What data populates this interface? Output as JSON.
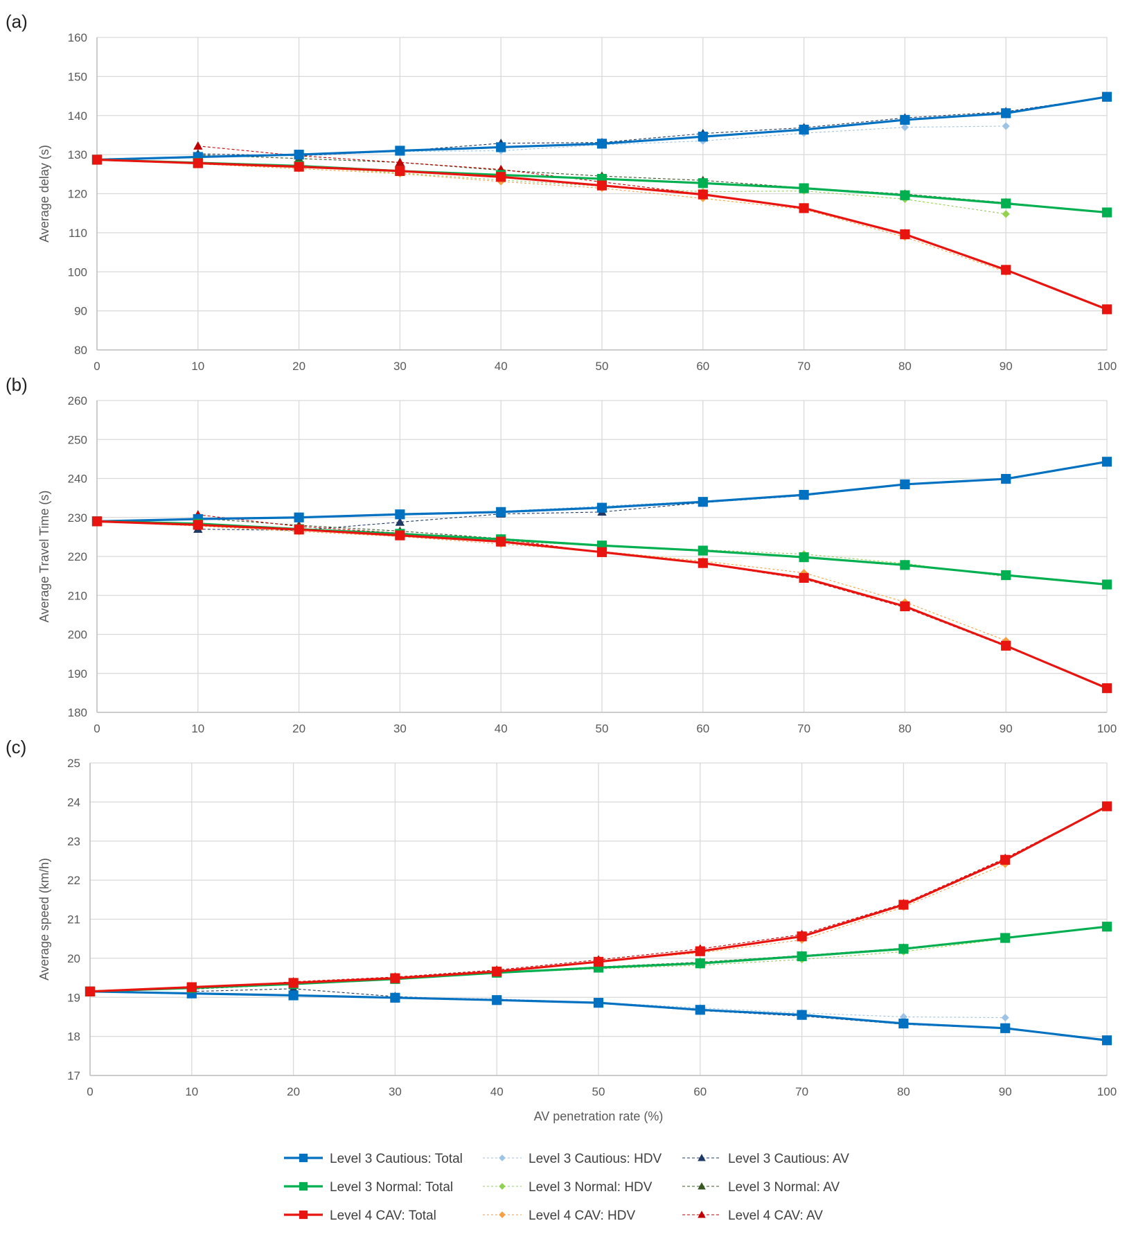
{
  "chart_data": [
    {
      "type": "line",
      "panel_label": "(a)",
      "ylabel": "Average delay (s)",
      "xlabel": "",
      "ylim": [
        80,
        160
      ],
      "y_ticks": [
        "80",
        "90",
        "100",
        "110",
        "120",
        "130",
        "140",
        "150",
        "160"
      ],
      "x_ticks": [
        "0",
        "10",
        "20",
        "30",
        "40",
        "50",
        "60",
        "70",
        "80",
        "90",
        "100"
      ],
      "x": [
        0,
        10,
        20,
        30,
        40,
        50,
        60,
        70,
        80,
        90,
        100
      ],
      "grid": true,
      "series": [
        {
          "name": "Level 3 Cautious: Total",
          "color": "#0070c0",
          "style": "total",
          "values": [
            128.7,
            129.4,
            130.0,
            131.0,
            131.9,
            132.8,
            134.6,
            136.4,
            138.9,
            140.6,
            144.8
          ]
        },
        {
          "name": "Level 3 Cautious: HDV",
          "color": "#9dc3e6",
          "style": "hdv",
          "values": [
            128.7,
            129.5,
            129.8,
            130.8,
            131.0,
            132.5,
            133.5,
            135.5,
            137.0,
            137.3,
            null
          ]
        },
        {
          "name": "Level 3 Cautious: AV",
          "color": "#1f3864",
          "style": "av",
          "values": [
            null,
            130.2,
            129.7,
            130.9,
            132.9,
            133.1,
            135.4,
            136.9,
            139.4,
            141.0,
            144.8
          ]
        },
        {
          "name": "Level 3 Normal: Total",
          "color": "#00b050",
          "style": "total",
          "values": [
            128.7,
            127.9,
            127.1,
            125.8,
            124.8,
            123.8,
            122.7,
            121.4,
            119.6,
            117.5,
            115.2
          ]
        },
        {
          "name": "Level 3 Normal: HDV",
          "color": "#92d050",
          "style": "hdv",
          "values": [
            128.7,
            127.9,
            126.9,
            125.3,
            123.5,
            121.9,
            120.5,
            120.7,
            118.6,
            114.8,
            null
          ]
        },
        {
          "name": "Level 3 Normal: AV",
          "color": "#375623",
          "style": "av",
          "values": [
            null,
            129.9,
            129.0,
            128.0,
            126.0,
            124.5,
            123.4,
            121.5,
            119.9,
            117.7,
            115.2
          ]
        },
        {
          "name": "Level 4 CAV: Total",
          "color": "#e8140f",
          "style": "total",
          "values": [
            128.7,
            127.8,
            126.9,
            125.8,
            124.3,
            122.1,
            119.8,
            116.3,
            109.6,
            100.5,
            90.4
          ]
        },
        {
          "name": "Level 4 CAV: HDV",
          "color": "#f4a044",
          "style": "hdv",
          "values": [
            128.7,
            127.6,
            126.4,
            125.1,
            123.1,
            121.4,
            118.8,
            116.0,
            108.9,
            100.0,
            null
          ]
        },
        {
          "name": "Level 4 CAV: AV",
          "color": "#c00000",
          "style": "av",
          "values": [
            null,
            132.2,
            129.7,
            128.0,
            126.2,
            123.0,
            119.9,
            116.4,
            109.8,
            100.6,
            90.4
          ]
        }
      ]
    },
    {
      "type": "line",
      "panel_label": "(b)",
      "ylabel": "Average Travel Time (s)",
      "xlabel": "",
      "ylim": [
        180,
        260
      ],
      "y_ticks": [
        "180",
        "190",
        "200",
        "210",
        "220",
        "230",
        "240",
        "250",
        "260"
      ],
      "x_ticks": [
        "0",
        "10",
        "20",
        "30",
        "40",
        "50",
        "60",
        "70",
        "80",
        "90",
        "100"
      ],
      "x": [
        0,
        10,
        20,
        30,
        40,
        50,
        60,
        70,
        80,
        90,
        100
      ],
      "grid": true,
      "series": [
        {
          "name": "Level 3 Cautious: Total",
          "color": "#0070c0",
          "style": "total",
          "values": [
            229.0,
            229.6,
            230.0,
            230.8,
            231.4,
            232.5,
            234.0,
            235.8,
            238.5,
            239.9,
            244.3
          ]
        },
        {
          "name": "Level 3 Cautious: HDV",
          "color": "#9dc3e6",
          "style": "hdv",
          "values": [
            229.0,
            229.7,
            230.1,
            231.0,
            231.6,
            232.9,
            234.2,
            235.9,
            238.6,
            240.0,
            null
          ]
        },
        {
          "name": "Level 3 Cautious: AV",
          "color": "#1f3864",
          "style": "av",
          "values": [
            null,
            227.0,
            226.7,
            228.8,
            230.9,
            231.4,
            233.8,
            235.6,
            238.4,
            239.8,
            244.3
          ]
        },
        {
          "name": "Level 3 Normal: Total",
          "color": "#00b050",
          "style": "total",
          "values": [
            229.0,
            228.4,
            227.0,
            225.8,
            224.4,
            222.8,
            221.5,
            219.8,
            217.8,
            215.2,
            212.8
          ]
        },
        {
          "name": "Level 3 Normal: HDV",
          "color": "#92d050",
          "style": "hdv",
          "values": [
            229.0,
            228.3,
            226.9,
            225.5,
            224.0,
            222.7,
            221.7,
            220.6,
            218.2,
            214.8,
            null
          ]
        },
        {
          "name": "Level 3 Normal: AV",
          "color": "#375623",
          "style": "av",
          "values": [
            null,
            229.8,
            228.0,
            226.5,
            224.6,
            222.8,
            221.4,
            219.7,
            217.6,
            215.3,
            212.8
          ]
        },
        {
          "name": "Level 4 CAV: Total",
          "color": "#e8140f",
          "style": "total",
          "values": [
            229.0,
            228.1,
            226.9,
            225.4,
            223.8,
            221.1,
            218.3,
            214.5,
            207.2,
            197.1,
            186.2
          ]
        },
        {
          "name": "Level 4 CAV: HDV",
          "color": "#f4a044",
          "style": "hdv",
          "values": [
            229.0,
            227.8,
            226.4,
            225.1,
            223.2,
            221.3,
            218.8,
            215.8,
            208.3,
            198.4,
            null
          ]
        },
        {
          "name": "Level 4 CAV: AV",
          "color": "#c00000",
          "style": "av",
          "values": [
            null,
            230.7,
            227.7,
            226.0,
            224.5,
            221.0,
            218.2,
            214.2,
            206.9,
            196.9,
            186.2
          ]
        }
      ]
    },
    {
      "type": "line",
      "panel_label": "(c)",
      "ylabel": "Average speed (km/h)",
      "xlabel": "AV penetration rate (%)",
      "ylim": [
        17,
        25
      ],
      "y_ticks": [
        "17",
        "18",
        "19",
        "20",
        "21",
        "22",
        "23",
        "24",
        "25"
      ],
      "x_ticks": [
        "0",
        "10",
        "20",
        "30",
        "40",
        "50",
        "60",
        "70",
        "80",
        "90",
        "100"
      ],
      "x": [
        0,
        10,
        20,
        30,
        40,
        50,
        60,
        70,
        80,
        90,
        100
      ],
      "grid": true,
      "series": [
        {
          "name": "Level 3 Cautious: Total",
          "color": "#0070c0",
          "style": "total",
          "values": [
            19.15,
            19.1,
            19.05,
            18.99,
            18.93,
            18.86,
            18.68,
            18.55,
            18.33,
            18.21,
            17.9
          ]
        },
        {
          "name": "Level 3 Cautious: HDV",
          "color": "#9dc3e6",
          "style": "hdv",
          "values": [
            19.15,
            19.1,
            19.05,
            19.0,
            18.96,
            18.87,
            18.73,
            18.6,
            18.5,
            18.48,
            null
          ]
        },
        {
          "name": "Level 3 Cautious: AV",
          "color": "#1f3864",
          "style": "av",
          "values": [
            null,
            19.15,
            19.22,
            19.02,
            18.92,
            18.85,
            18.66,
            18.52,
            18.31,
            18.2,
            17.9
          ]
        },
        {
          "name": "Level 3 Normal: Total",
          "color": "#00b050",
          "style": "total",
          "values": [
            19.15,
            19.24,
            19.34,
            19.47,
            19.63,
            19.76,
            19.87,
            20.05,
            20.24,
            20.52,
            20.81
          ]
        },
        {
          "name": "Level 3 Normal: HDV",
          "color": "#92d050",
          "style": "hdv",
          "values": [
            19.15,
            19.24,
            19.34,
            19.46,
            19.62,
            19.73,
            19.82,
            19.97,
            20.17,
            20.5,
            null
          ]
        },
        {
          "name": "Level 3 Normal: AV",
          "color": "#375623",
          "style": "av",
          "values": [
            null,
            19.21,
            19.33,
            19.48,
            19.64,
            19.78,
            19.9,
            20.07,
            20.26,
            20.53,
            20.81
          ]
        },
        {
          "name": "Level 4 CAV: Total",
          "color": "#e8140f",
          "style": "total",
          "values": [
            19.15,
            19.26,
            19.37,
            19.49,
            19.66,
            19.91,
            20.18,
            20.56,
            21.37,
            22.52,
            23.89
          ]
        },
        {
          "name": "Level 4 CAV: HDV",
          "color": "#f4a044",
          "style": "hdv",
          "values": [
            19.15,
            19.26,
            19.37,
            19.5,
            19.66,
            19.92,
            20.14,
            20.47,
            21.31,
            22.41,
            null
          ]
        },
        {
          "name": "Level 4 CAV: AV",
          "color": "#c00000",
          "style": "av",
          "values": [
            null,
            19.22,
            19.4,
            19.52,
            19.7,
            19.96,
            20.24,
            20.61,
            21.4,
            22.56,
            23.89
          ]
        }
      ]
    }
  ],
  "legend": [
    {
      "name": "Level 3 Cautious: Total",
      "color": "#0070c0",
      "style": "total"
    },
    {
      "name": "Level 3 Cautious: HDV",
      "color": "#9dc3e6",
      "style": "hdv"
    },
    {
      "name": "Level 3 Cautious: AV",
      "color": "#1f3864",
      "style": "av"
    },
    {
      "name": "Level 3 Normal: Total",
      "color": "#00b050",
      "style": "total"
    },
    {
      "name": "Level 3 Normal: HDV",
      "color": "#92d050",
      "style": "hdv"
    },
    {
      "name": "Level 3 Normal: AV",
      "color": "#375623",
      "style": "av"
    },
    {
      "name": "Level 4 CAV: Total",
      "color": "#e8140f",
      "style": "total"
    },
    {
      "name": "Level 4 CAV: HDV",
      "color": "#f4a044",
      "style": "hdv"
    },
    {
      "name": "Level 4 CAV: AV",
      "color": "#c00000",
      "style": "av"
    }
  ],
  "legend_placement": "bottom",
  "marker_styles": {
    "total": "square",
    "hdv": "diamond",
    "av": "triangle"
  },
  "grid_color": "#d9d9d9"
}
